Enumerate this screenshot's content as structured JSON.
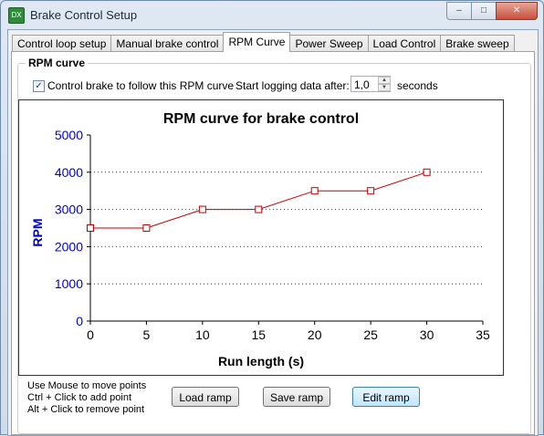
{
  "window": {
    "title": "Brake Control Setup",
    "app_icon_text": "DX",
    "controls": {
      "minimize": "–",
      "maximize": "□",
      "close": "✕"
    }
  },
  "tabs": [
    {
      "label": "Control loop setup",
      "active": false
    },
    {
      "label": "Manual brake control",
      "active": false
    },
    {
      "label": "RPM Curve",
      "active": true
    },
    {
      "label": "Power Sweep",
      "active": false
    },
    {
      "label": "Load Control",
      "active": false
    },
    {
      "label": "Brake sweep",
      "active": false
    }
  ],
  "group": {
    "title": "RPM curve",
    "follow_checkbox": {
      "label": "Control brake to follow this RPM curve",
      "checked": true
    },
    "logging": {
      "label": "Start logging data after:",
      "value": "1,0",
      "unit": "seconds"
    }
  },
  "chart_data": {
    "type": "line",
    "title": "RPM curve for brake control",
    "xlabel": "Run length (s)",
    "ylabel": "RPM",
    "xlim": [
      0,
      35
    ],
    "ylim": [
      0,
      5000
    ],
    "x_ticks": [
      0,
      5,
      10,
      15,
      20,
      25,
      30,
      35
    ],
    "y_ticks": [
      0,
      1000,
      2000,
      3000,
      4000,
      5000
    ],
    "grid": "dotted horizontal",
    "series": [
      {
        "x": [
          0,
          5,
          10,
          15,
          20,
          25,
          30
        ],
        "y": [
          2500,
          2500,
          3000,
          3000,
          3500,
          3500,
          4000
        ]
      }
    ],
    "colors": {
      "line": "#c00000",
      "ylabel": "#0000cc",
      "yticks": "#0000cc",
      "grid": "#c00000"
    }
  },
  "help": {
    "lines": [
      "Use Mouse to move points",
      "Ctrl + Click to add point",
      "Alt + Click to remove point"
    ]
  },
  "buttons": {
    "load": "Load ramp",
    "save": "Save ramp",
    "edit": "Edit ramp"
  }
}
